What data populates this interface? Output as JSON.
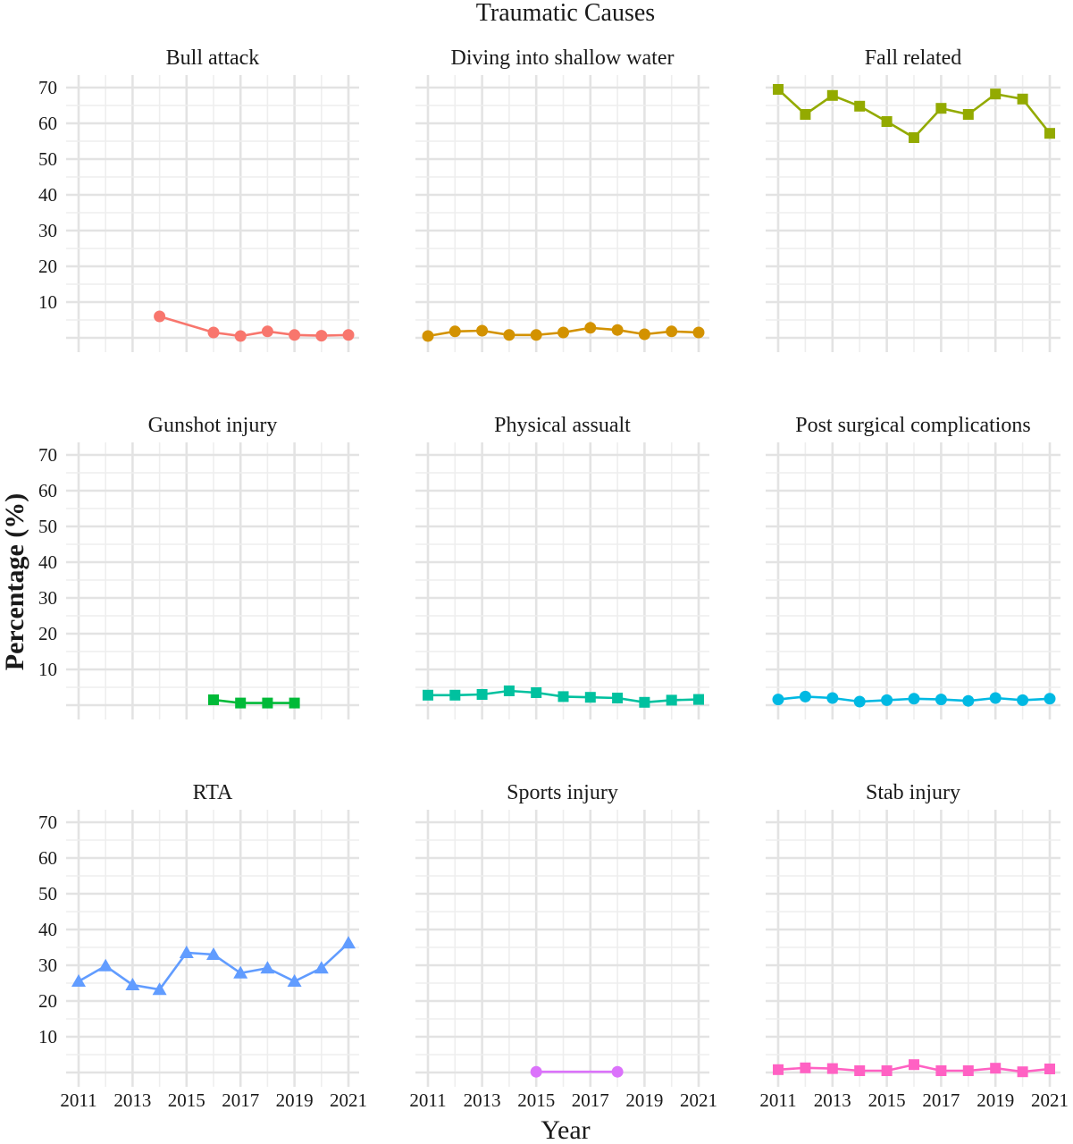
{
  "chart_data": {
    "type": "line",
    "title": "Traumatic Causes",
    "xlabel": "Year",
    "ylabel": "Percentage (%)",
    "xlim": [
      2011,
      2021
    ],
    "ylim": [
      0,
      70
    ],
    "x_ticks": [
      "2011",
      "2013",
      "2015",
      "2017",
      "2019",
      "2021"
    ],
    "y_ticks": [
      "10",
      "20",
      "30",
      "40",
      "50",
      "60",
      "70"
    ],
    "grid": true,
    "legend": "none",
    "panels": [
      {
        "name": "Bull attack",
        "color": "#f8766d",
        "marker": "circle",
        "points": [
          [
            2014,
            6.0
          ],
          [
            2016,
            1.5
          ],
          [
            2017,
            0.5
          ],
          [
            2018,
            1.8
          ],
          [
            2019,
            0.8
          ],
          [
            2020,
            0.6
          ],
          [
            2021,
            0.8
          ]
        ]
      },
      {
        "name": "Diving into shallow water",
        "color": "#d39200",
        "marker": "circle",
        "points": [
          [
            2011,
            0.5
          ],
          [
            2012,
            1.8
          ],
          [
            2013,
            2.0
          ],
          [
            2014,
            0.8
          ],
          [
            2015,
            0.8
          ],
          [
            2016,
            1.5
          ],
          [
            2017,
            2.8
          ],
          [
            2018,
            2.2
          ],
          [
            2019,
            1.0
          ],
          [
            2020,
            1.8
          ],
          [
            2021,
            1.5
          ]
        ]
      },
      {
        "name": "Fall related",
        "color": "#93aa00",
        "marker": "square",
        "points": [
          [
            2011,
            69.5
          ],
          [
            2012,
            62.5
          ],
          [
            2013,
            67.8
          ],
          [
            2014,
            64.8
          ],
          [
            2015,
            60.5
          ],
          [
            2016,
            56.0
          ],
          [
            2017,
            64.2
          ],
          [
            2018,
            62.5
          ],
          [
            2019,
            68.2
          ],
          [
            2020,
            66.8
          ],
          [
            2021,
            57.2
          ]
        ]
      },
      {
        "name": "Gunshot injury",
        "color": "#00ba38",
        "marker": "square",
        "points": [
          [
            2016,
            1.5
          ],
          [
            2017,
            0.6
          ],
          [
            2018,
            0.6
          ],
          [
            2019,
            0.6
          ]
        ]
      },
      {
        "name": "Physical assualt",
        "color": "#00c19f",
        "marker": "square",
        "points": [
          [
            2011,
            2.8
          ],
          [
            2012,
            2.8
          ],
          [
            2013,
            3.0
          ],
          [
            2014,
            4.0
          ],
          [
            2015,
            3.5
          ],
          [
            2016,
            2.4
          ],
          [
            2017,
            2.2
          ],
          [
            2018,
            2.0
          ],
          [
            2019,
            0.8
          ],
          [
            2020,
            1.4
          ],
          [
            2021,
            1.6
          ]
        ]
      },
      {
        "name": "Post surgical complications",
        "color": "#00b9e3",
        "marker": "circle",
        "points": [
          [
            2011,
            1.6
          ],
          [
            2012,
            2.4
          ],
          [
            2013,
            2.0
          ],
          [
            2014,
            1.0
          ],
          [
            2015,
            1.4
          ],
          [
            2016,
            1.8
          ],
          [
            2017,
            1.6
          ],
          [
            2018,
            1.2
          ],
          [
            2019,
            2.0
          ],
          [
            2020,
            1.4
          ],
          [
            2021,
            1.8
          ]
        ]
      },
      {
        "name": "RTA",
        "color": "#619cff",
        "marker": "triangle",
        "points": [
          [
            2011,
            25.5
          ],
          [
            2012,
            29.8
          ],
          [
            2013,
            24.5
          ],
          [
            2014,
            23.2
          ],
          [
            2015,
            33.5
          ],
          [
            2016,
            33.0
          ],
          [
            2017,
            27.8
          ],
          [
            2018,
            29.2
          ],
          [
            2019,
            25.5
          ],
          [
            2020,
            29.2
          ],
          [
            2021,
            36.2
          ]
        ]
      },
      {
        "name": "Sports injury",
        "color": "#db72fb",
        "marker": "circle",
        "points": [
          [
            2015,
            0.2
          ],
          [
            2018,
            0.2
          ]
        ]
      },
      {
        "name": "Stab injury",
        "color": "#ff61c3",
        "marker": "square",
        "points": [
          [
            2011,
            0.8
          ],
          [
            2012,
            1.3
          ],
          [
            2013,
            1.1
          ],
          [
            2014,
            0.5
          ],
          [
            2015,
            0.5
          ],
          [
            2016,
            2.2
          ],
          [
            2017,
            0.5
          ],
          [
            2018,
            0.5
          ],
          [
            2019,
            1.2
          ],
          [
            2020,
            0.2
          ],
          [
            2021,
            1.0
          ]
        ]
      }
    ]
  }
}
